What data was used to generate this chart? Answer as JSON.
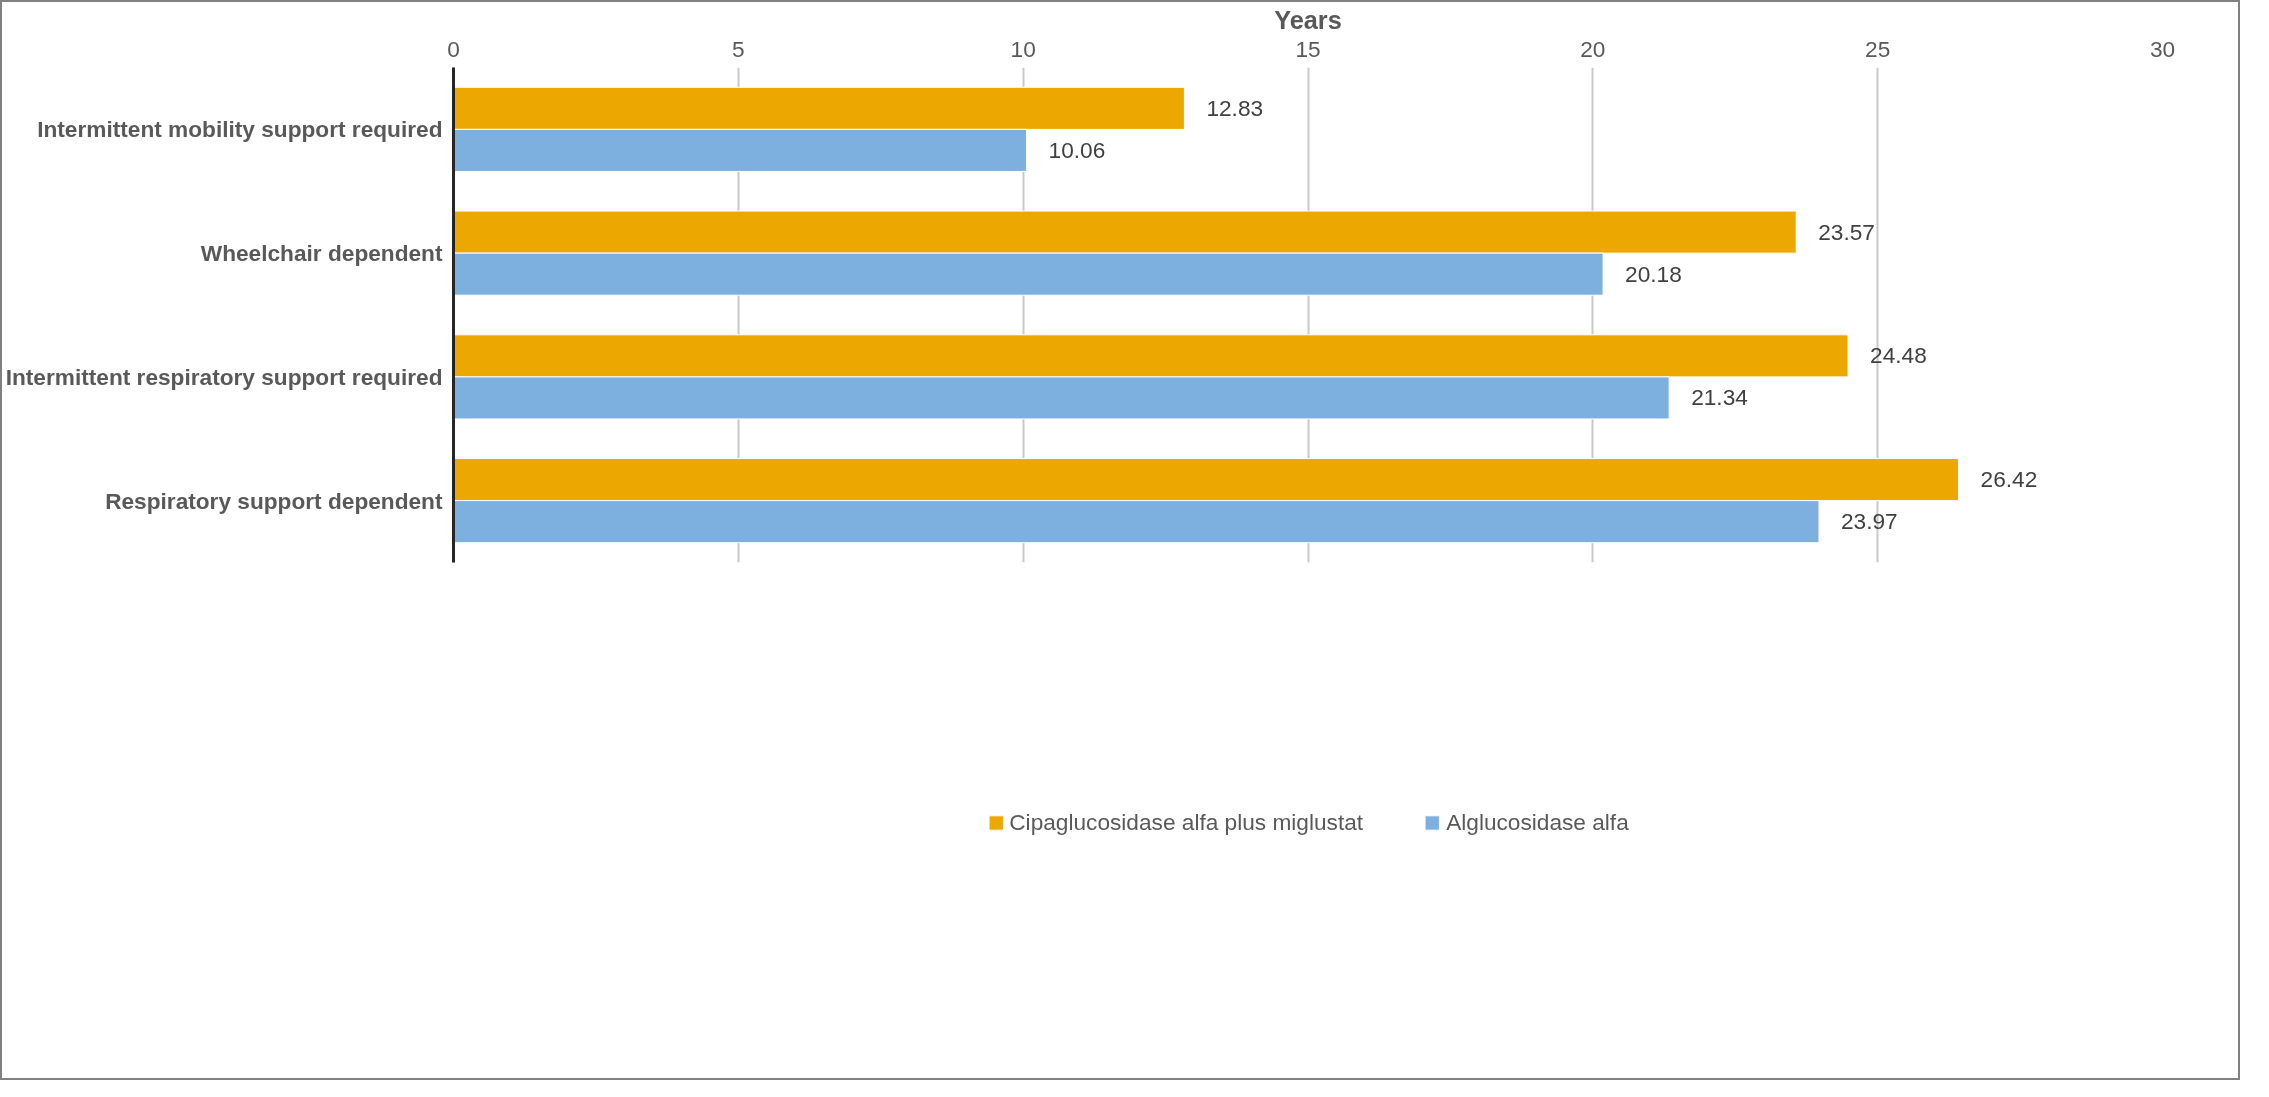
{
  "chart_data": {
    "type": "bar",
    "orientation": "horizontal",
    "xlabel": "Years",
    "categories": [
      "Intermittent mobility support required",
      "Wheelchair dependent",
      "Intermittent respiratory support required",
      "Respiratory support dependent"
    ],
    "series": [
      {
        "name": "Cipaglucosidase alfa plus miglustat",
        "color": "#eda800",
        "values": [
          12.83,
          23.57,
          24.48,
          26.42
        ]
      },
      {
        "name": "Alglucosidase alfa",
        "color": "#7eb0df",
        "values": [
          10.06,
          20.18,
          21.34,
          23.97
        ]
      }
    ],
    "xlim": [
      0,
      30
    ],
    "xticks": [
      0,
      5,
      10,
      15,
      20,
      25,
      30
    ],
    "grid": "x",
    "legend": "bottom",
    "data_labels": true
  }
}
